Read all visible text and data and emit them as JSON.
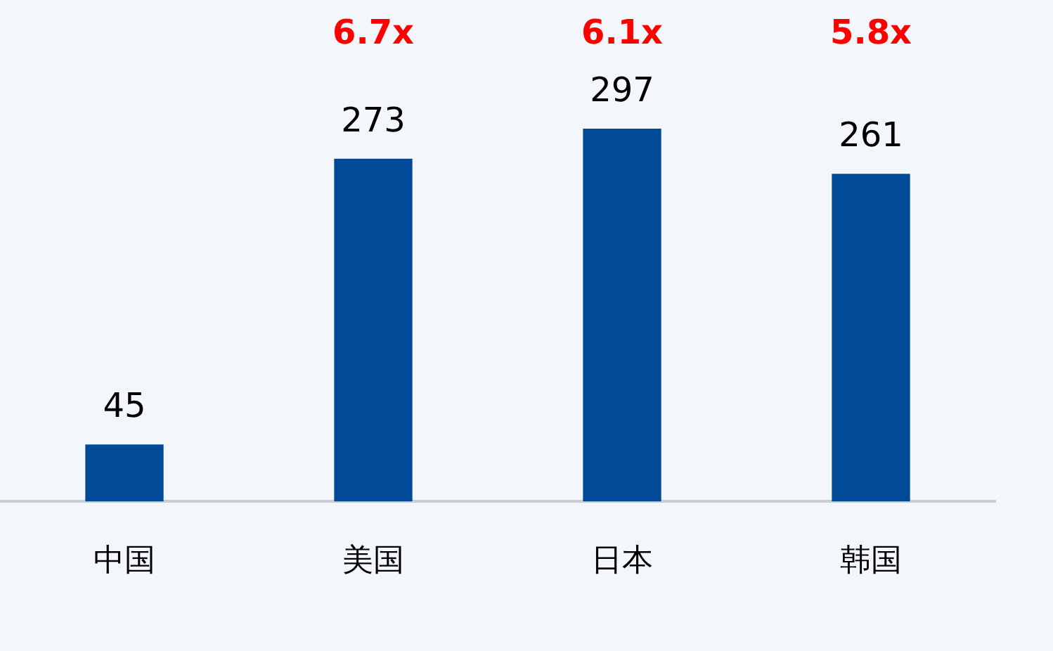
{
  "chart_data": {
    "type": "bar",
    "categories": [
      "中国",
      "美国",
      "日本",
      "韩国"
    ],
    "values": [
      45,
      273,
      297,
      261
    ],
    "color": "#004a98",
    "data_labels": true,
    "tick_labels": "x",
    "grid": false,
    "legend": false,
    "annotations": [
      "6.7x",
      "6.1x",
      "5.8x"
    ]
  }
}
